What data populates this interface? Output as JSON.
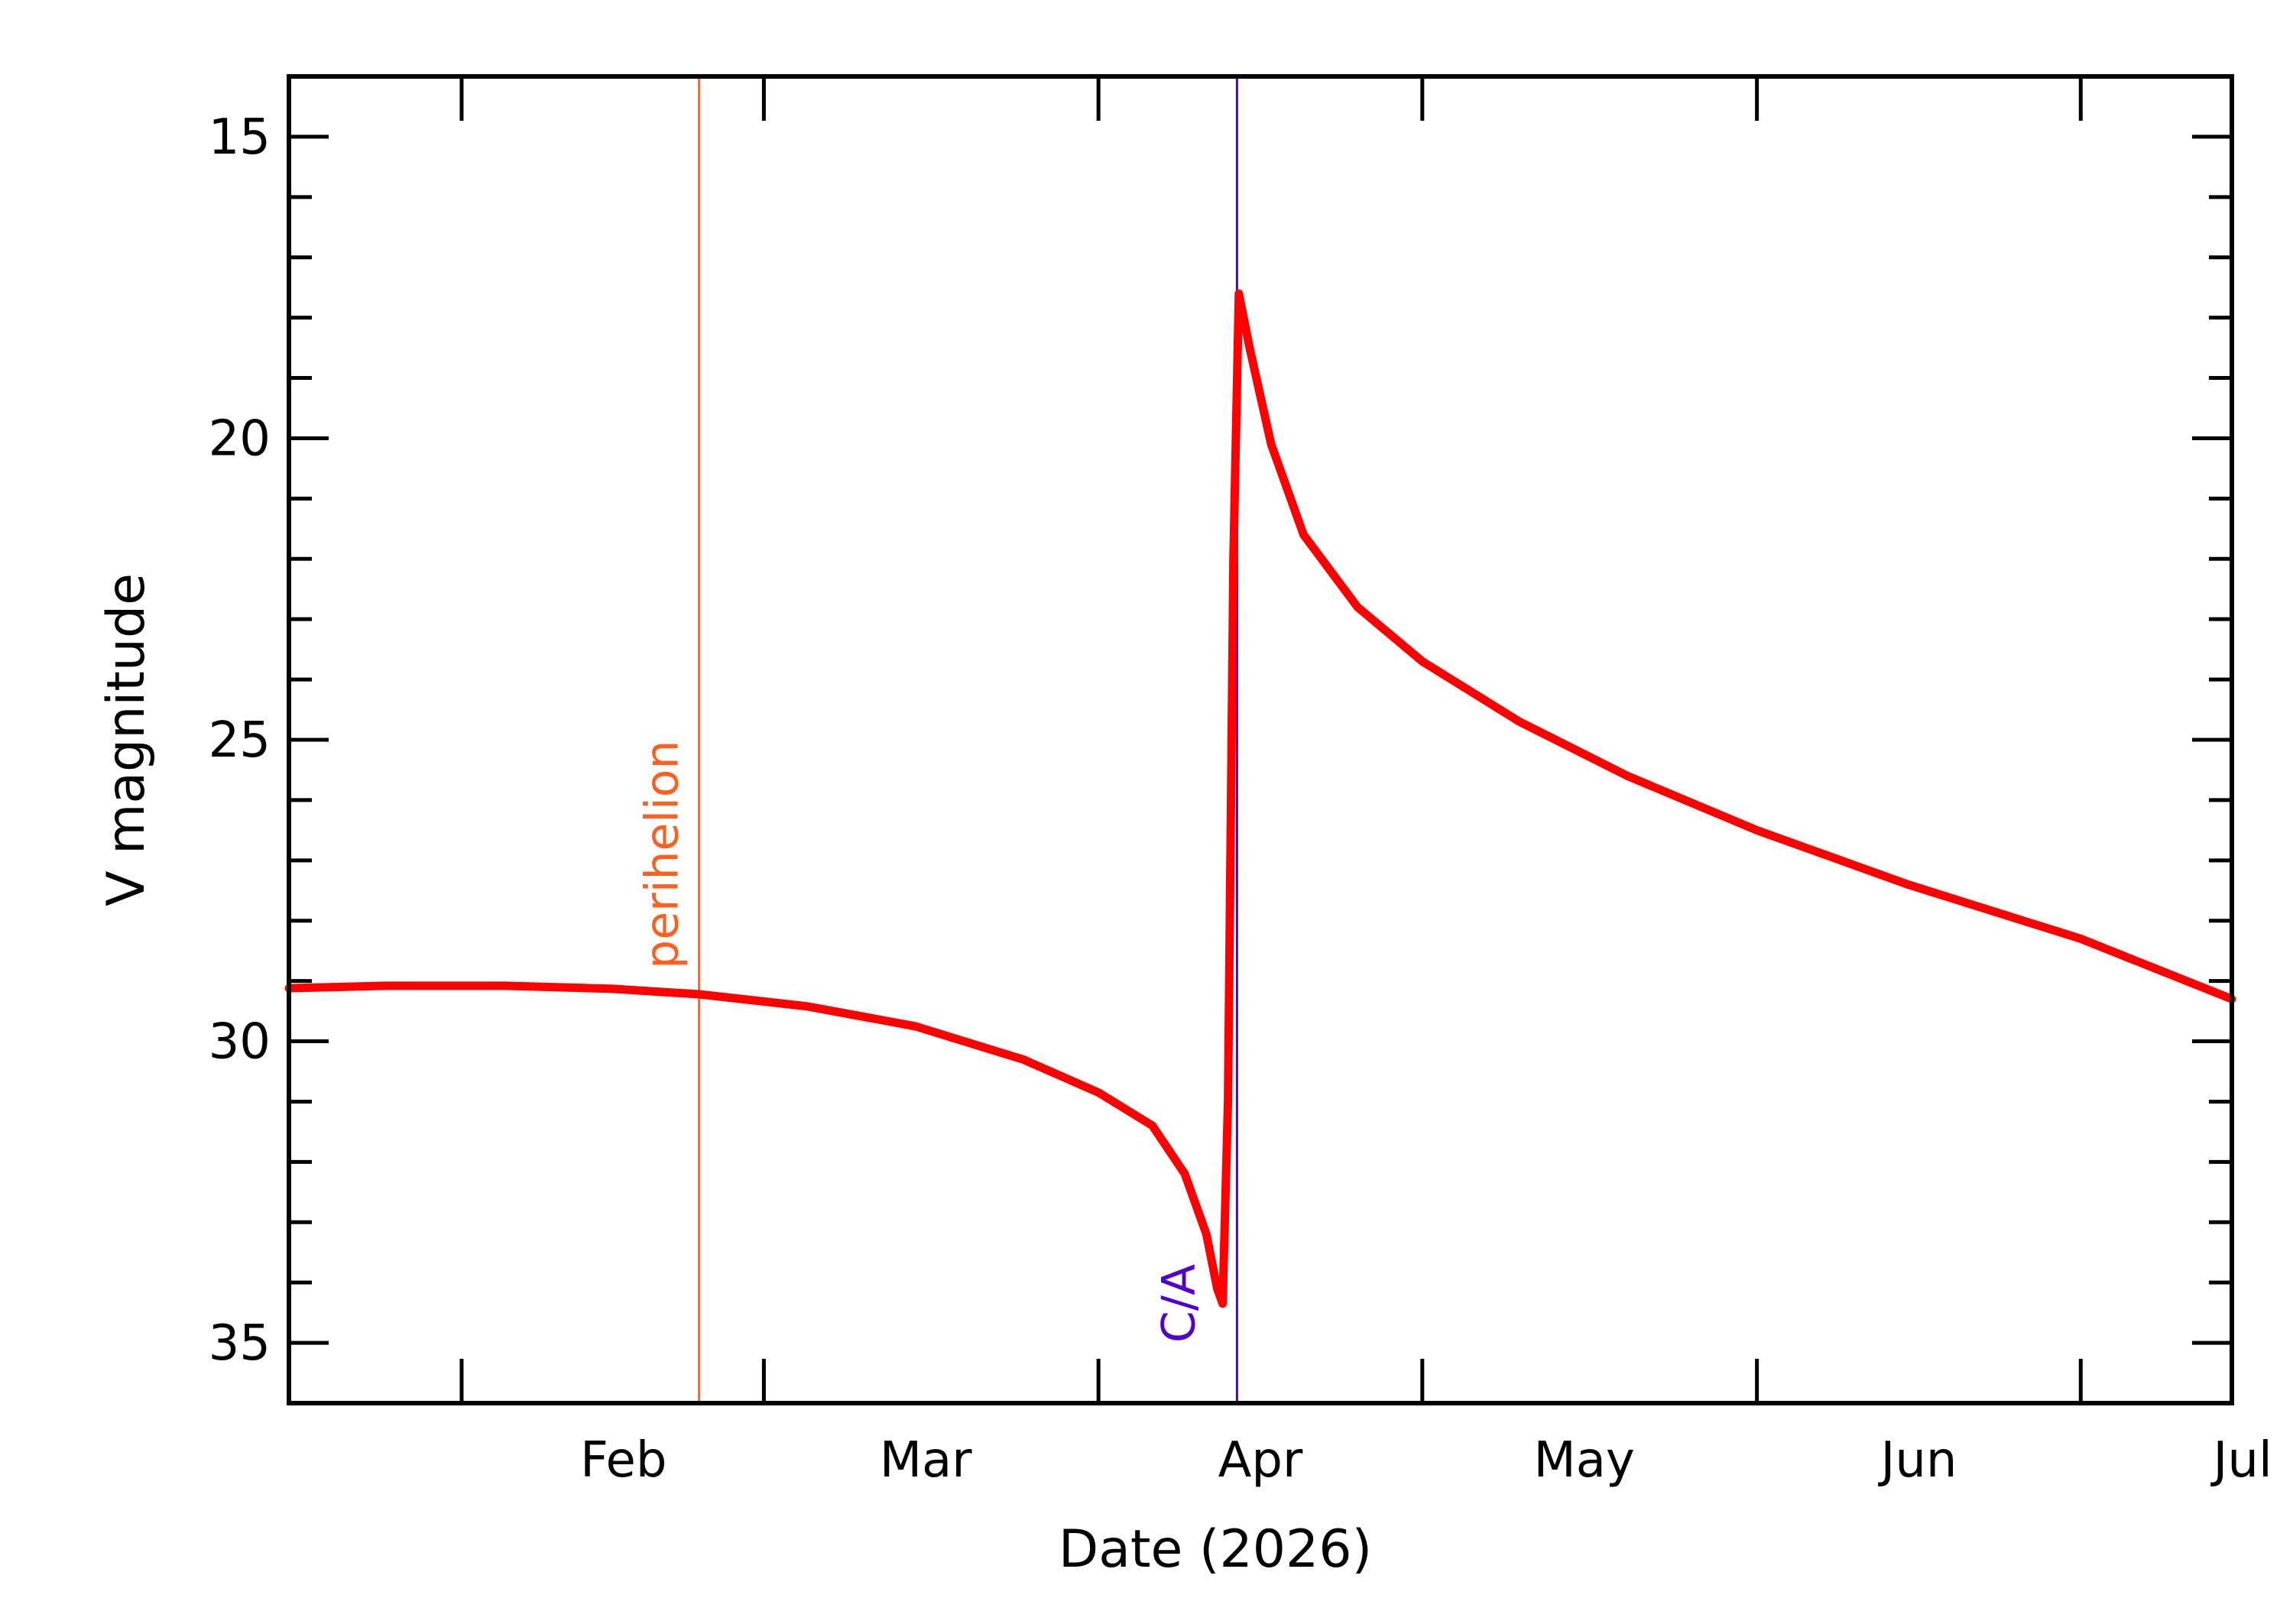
{
  "chart_data": {
    "type": "line",
    "xlabel": "Date (2026)",
    "ylabel": "V magnitude",
    "y_inverted": true,
    "xlim": [
      "2026-01-16",
      "2026-07-15"
    ],
    "ylim": [
      14,
      36
    ],
    "x_tick_labels": [
      {
        "date": "2026-02-01",
        "label": "Feb"
      },
      {
        "date": "2026-03-01",
        "label": "Mar"
      },
      {
        "date": "2026-04-01",
        "label": "Apr"
      },
      {
        "date": "2026-05-01",
        "label": "May"
      },
      {
        "date": "2026-06-01",
        "label": "Jun"
      },
      {
        "date": "2026-07-01",
        "label": "Jul"
      }
    ],
    "y_tick_labels": [
      15,
      20,
      25,
      30,
      35
    ],
    "grid": false,
    "series": [
      {
        "color": "#ff0000",
        "points": [
          [
            "2026-01-16",
            29.12
          ],
          [
            "2026-01-25",
            29.08
          ],
          [
            "2026-02-05",
            29.08
          ],
          [
            "2026-02-15",
            29.13
          ],
          [
            "2026-02-23",
            29.22
          ],
          [
            "2026-03-05",
            29.42
          ],
          [
            "2026-03-15",
            29.75
          ],
          [
            "2026-03-25",
            30.3
          ],
          [
            "2026-04-01",
            30.85
          ],
          [
            "2026-04-06",
            31.4
          ],
          [
            "2026-04-09",
            32.2
          ],
          [
            "2026-04-11",
            33.2
          ],
          [
            "2026-04-12",
            34.1
          ],
          [
            "2026-04-12T12:00",
            34.35
          ],
          [
            "2026-04-13",
            31.0
          ],
          [
            "2026-04-13T12:00",
            22.0
          ],
          [
            "2026-04-14",
            17.6
          ],
          [
            "2026-04-15",
            18.5
          ],
          [
            "2026-04-17",
            20.1
          ],
          [
            "2026-04-20",
            21.6
          ],
          [
            "2026-04-25",
            22.8
          ],
          [
            "2026-05-01",
            23.7
          ],
          [
            "2026-05-10",
            24.7
          ],
          [
            "2026-05-20",
            25.6
          ],
          [
            "2026-06-01",
            26.5
          ],
          [
            "2026-06-15",
            27.4
          ],
          [
            "2026-07-01",
            28.3
          ],
          [
            "2026-07-15",
            29.3
          ]
        ]
      }
    ],
    "annotations": [
      {
        "label": "perihelion",
        "date": "2026-02-23",
        "color": "#ff6020"
      },
      {
        "label": "C/A",
        "date": "2026-04-13T20:00",
        "color": "#5000d0"
      }
    ]
  }
}
